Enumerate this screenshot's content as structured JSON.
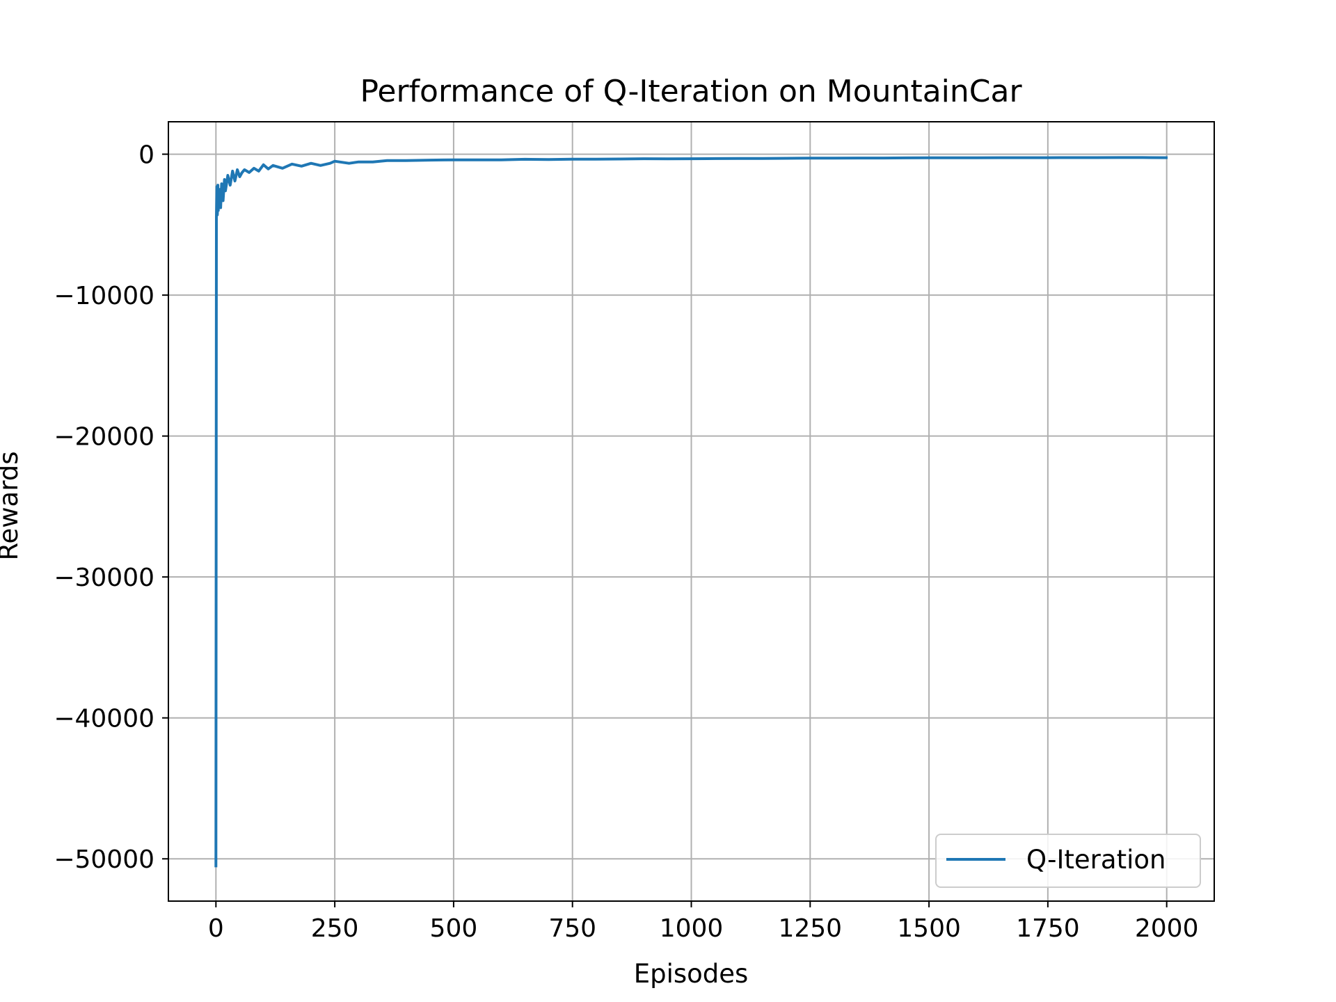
{
  "chart_data": {
    "type": "line",
    "title": "Performance of Q-Iteration on MountainCar",
    "xlabel": "Episodes",
    "ylabel": "Rewards",
    "xlim": [
      -100,
      2100
    ],
    "ylim": [
      -53000,
      2300
    ],
    "xticks": [
      0,
      250,
      500,
      750,
      1000,
      1250,
      1500,
      1750,
      2000
    ],
    "xtick_labels": [
      "0",
      "250",
      "500",
      "750",
      "1000",
      "1250",
      "1500",
      "1750",
      "2000"
    ],
    "yticks": [
      0,
      -10000,
      -20000,
      -30000,
      -40000,
      -50000
    ],
    "ytick_labels": [
      "0",
      "−10000",
      "−20000",
      "−30000",
      "−40000",
      "−50000"
    ],
    "grid": true,
    "legend_position": "lower-right",
    "series": [
      {
        "name": "Q-Iteration",
        "color": "#1f77b4",
        "x": [
          0,
          1,
          2,
          3,
          4,
          5,
          6,
          8,
          10,
          12,
          15,
          18,
          20,
          25,
          30,
          35,
          40,
          45,
          50,
          55,
          60,
          70,
          80,
          90,
          100,
          110,
          120,
          140,
          160,
          180,
          200,
          220,
          240,
          250,
          260,
          280,
          300,
          330,
          360,
          400,
          450,
          500,
          550,
          600,
          650,
          700,
          750,
          800,
          850,
          900,
          950,
          1000,
          1050,
          1100,
          1150,
          1200,
          1250,
          1300,
          1350,
          1400,
          1450,
          1500,
          1550,
          1600,
          1650,
          1700,
          1750,
          1800,
          1850,
          1900,
          1950,
          1999
        ],
        "values": [
          -50500,
          -4500,
          -2300,
          -4300,
          -2200,
          -4000,
          -3200,
          -2500,
          -3800,
          -2100,
          -3300,
          -1800,
          -2600,
          -1500,
          -2200,
          -1200,
          -1900,
          -1100,
          -1600,
          -1300,
          -1100,
          -1300,
          -1000,
          -1200,
          -750,
          -1050,
          -800,
          -1000,
          -700,
          -850,
          -650,
          -800,
          -650,
          -500,
          -550,
          -650,
          -550,
          -550,
          -450,
          -450,
          -420,
          -400,
          -400,
          -400,
          -360,
          -380,
          -350,
          -350,
          -340,
          -320,
          -330,
          -320,
          -310,
          -300,
          -300,
          -290,
          -280,
          -280,
          -270,
          -270,
          -265,
          -260,
          -260,
          -255,
          -250,
          -250,
          -250,
          -245,
          -245,
          -240,
          -240,
          -250
        ]
      }
    ]
  }
}
